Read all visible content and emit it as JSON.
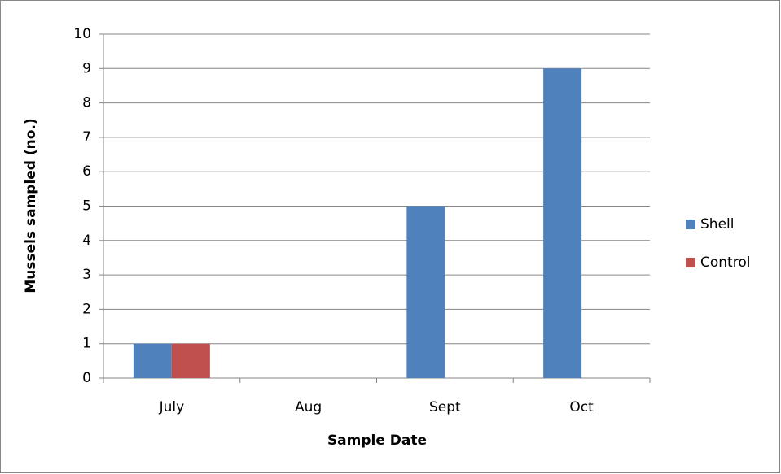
{
  "chart_data": {
    "type": "bar",
    "x_label": "Sample Date",
    "y_label": "Mussels sampled (no.)",
    "categories": [
      "July",
      "Aug",
      "Sept",
      "Oct"
    ],
    "series": [
      {
        "name": "Shell",
        "color": "#4f81bd",
        "values": [
          1,
          0,
          5,
          9
        ]
      },
      {
        "name": "Control",
        "color": "#c0504d",
        "values": [
          1,
          0,
          0,
          0
        ]
      }
    ],
    "ylim": [
      0,
      10
    ],
    "yticks": [
      0,
      1,
      2,
      3,
      4,
      5,
      6,
      7,
      8,
      9,
      10
    ],
    "grid": true,
    "legend": "right"
  }
}
